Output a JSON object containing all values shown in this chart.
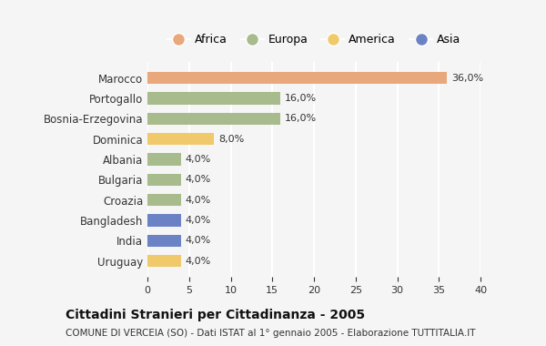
{
  "countries": [
    "Marocco",
    "Portogallo",
    "Bosnia-Erzegovina",
    "Dominica",
    "Albania",
    "Bulgaria",
    "Croazia",
    "Bangladesh",
    "India",
    "Uruguay"
  ],
  "values": [
    36.0,
    16.0,
    16.0,
    8.0,
    4.0,
    4.0,
    4.0,
    4.0,
    4.0,
    4.0
  ],
  "labels": [
    "36,0%",
    "16,0%",
    "16,0%",
    "8,0%",
    "4,0%",
    "4,0%",
    "4,0%",
    "4,0%",
    "4,0%",
    "4,0%"
  ],
  "continents": [
    "Africa",
    "Europa",
    "Europa",
    "America",
    "Europa",
    "Europa",
    "Europa",
    "Asia",
    "Asia",
    "America"
  ],
  "bar_colors": [
    "#E8A87C",
    "#A8BB8C",
    "#A8BB8C",
    "#F0C96A",
    "#A8BB8C",
    "#A8BB8C",
    "#A8BB8C",
    "#6B82C4",
    "#6B82C4",
    "#F0C96A"
  ],
  "legend_order": [
    "Africa",
    "Europa",
    "America",
    "Asia"
  ],
  "legend_colors": [
    "#E8A87C",
    "#A8BB8C",
    "#F0C96A",
    "#6B82C4"
  ],
  "title": "Cittadini Stranieri per Cittadinanza - 2005",
  "subtitle": "COMUNE DI VERCEIA (SO) - Dati ISTAT al 1° gennaio 2005 - Elaborazione TUTTITALIA.IT",
  "xlim": [
    0,
    40
  ],
  "xticks": [
    0,
    5,
    10,
    15,
    20,
    25,
    30,
    35,
    40
  ],
  "background_color": "#f5f5f5",
  "grid_color": "#ffffff",
  "bar_height": 0.6
}
